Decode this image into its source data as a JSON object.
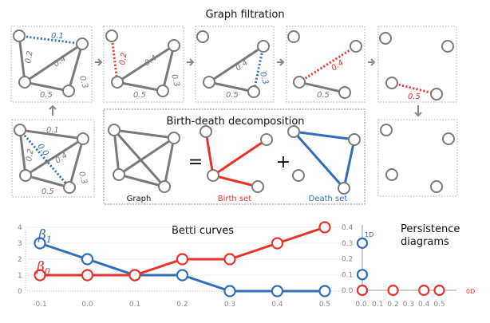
{
  "titles": {
    "graph_filtration": "Graph filtration",
    "birth_death": "Birth-death decomposition",
    "betti": "Betti curves",
    "persistence_line1": "Persistence",
    "persistence_line2": "diagrams"
  },
  "colors": {
    "gray": "#7a7a7a",
    "red": "#e8322c",
    "blue": "#2f6dbb",
    "tick": "#888888"
  },
  "filtration": {
    "full_graph": {
      "edges": [
        "0.0",
        "0.1",
        "0.2",
        "0.3",
        "0.4",
        "0.5"
      ],
      "highlight": "0.0"
    },
    "steps": [
      {
        "removed_edge": "0.1",
        "color": "blue",
        "remaining": [
          "0.2",
          "0.4",
          "0.3",
          "0.5"
        ]
      },
      {
        "removed_edge": "0.2",
        "color": "red",
        "remaining": [
          "0.4",
          "0.3",
          "0.5"
        ]
      },
      {
        "removed_edge": "0.3",
        "color": "blue",
        "remaining": [
          "0.4",
          "0.5"
        ]
      },
      {
        "removed_edge": "0.4",
        "color": "red",
        "remaining": [
          "0.5"
        ]
      },
      {
        "removed_edge": "0.5",
        "color": "red",
        "remaining": []
      }
    ]
  },
  "decomposition": {
    "graph_label": "Graph",
    "equals": "=",
    "plus": "+",
    "birth_label": "Birth set",
    "death_label": "Death set"
  },
  "chart_data": [
    {
      "type": "line",
      "title": "Betti curves",
      "x": [
        -0.1,
        0.0,
        0.1,
        0.2,
        0.3,
        0.4,
        0.5
      ],
      "xticks": [
        "-0.1",
        "0.0",
        "0.1",
        "0.2",
        "0.3",
        "0.4",
        "0.5"
      ],
      "yticks": [
        "0",
        "1",
        "2",
        "3",
        "4"
      ],
      "ylim": [
        0,
        4
      ],
      "series": [
        {
          "name": "β0",
          "color": "#e8322c",
          "values": [
            1,
            1,
            1,
            2,
            2,
            3,
            4
          ]
        },
        {
          "name": "β1",
          "color": "#2f6dbb",
          "values": [
            3,
            2,
            1,
            1,
            0,
            0,
            0
          ]
        }
      ],
      "grid": true
    },
    {
      "type": "scatter",
      "title": "Persistence diagrams",
      "xticks": [
        "0.0.",
        "0.1",
        "0.2",
        "0.3",
        "0.4",
        "0.5"
      ],
      "yticks": [
        "0.0",
        "0.1",
        "0.2",
        "0.3",
        "0.4"
      ],
      "series": [
        {
          "name": "1D",
          "color": "#2f6dbb",
          "points": [
            [
              0,
              0
            ],
            [
              0,
              0.1
            ],
            [
              0,
              0.3
            ]
          ]
        },
        {
          "name": "0D",
          "color": "#e8322c",
          "points": [
            [
              0,
              0
            ],
            [
              0.2,
              0
            ],
            [
              0.4,
              0
            ],
            [
              0.5,
              0
            ]
          ]
        }
      ]
    }
  ],
  "legend": {
    "beta1": "β",
    "beta1_sub": "1",
    "beta0": "β",
    "beta0_sub": "0",
    "pd_1d": "1D",
    "pd_0d": "0D"
  }
}
